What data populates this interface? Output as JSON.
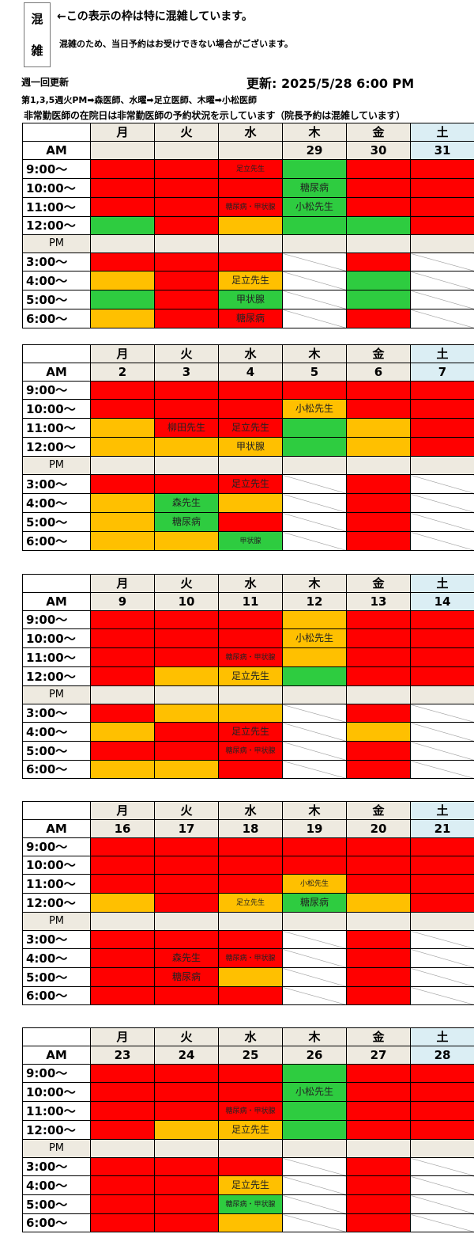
{
  "legend": {
    "box_chars": [
      "混",
      "雑"
    ],
    "line1": "←この表示の枠は特に混雑しています。",
    "line2": "混雑のため、当日予約はお受けできない場合がございます。"
  },
  "update": {
    "weekly": "週一回更新",
    "updated": "更新: 2025/5/28 6:00 PM"
  },
  "notes": {
    "note1": "第1,3,5週火PM➡森医師、水曜➡足立医師、木曜➡小松医師",
    "note2": "非常勤医師の在院日は非常勤医師の予約状況を示しています（院長予約は混雑しています）"
  },
  "weekday_labels": [
    "月",
    "火",
    "水",
    "木",
    "金",
    "土"
  ],
  "am_label": "AM",
  "pm_label": "PM",
  "am_times": [
    "9:00～",
    "10:00～",
    "11:00～",
    "12:00～"
  ],
  "pm_times": [
    "3:00～",
    "4:00～",
    "5:00～",
    "6:00～"
  ],
  "colors": {
    "red": "#ff0000",
    "orange": "#ffc000",
    "green": "#2ecc40",
    "gray": "#eeeae0",
    "saturday": "#dbeef4"
  },
  "weeks": [
    {
      "dates": [
        "",
        "",
        "",
        "29",
        "30",
        "31"
      ],
      "am": [
        [
          [
            "red",
            ""
          ],
          [
            "red",
            ""
          ],
          [
            "red",
            "足立先生",
            "small"
          ],
          [
            "green",
            ""
          ],
          [
            "red",
            ""
          ],
          [
            "red",
            ""
          ]
        ],
        [
          [
            "red",
            ""
          ],
          [
            "red",
            ""
          ],
          [
            "red",
            ""
          ],
          [
            "green",
            "糖尿病",
            "mid"
          ],
          [
            "red",
            ""
          ],
          [
            "red",
            ""
          ]
        ],
        [
          [
            "red",
            ""
          ],
          [
            "red",
            ""
          ],
          [
            "red",
            "糖尿病・甲状腺",
            "small"
          ],
          [
            "green",
            "小松先生",
            "mid"
          ],
          [
            "red",
            ""
          ],
          [
            "red",
            ""
          ]
        ],
        [
          [
            "green",
            ""
          ],
          [
            "red",
            ""
          ],
          [
            "orange",
            ""
          ],
          [
            "green",
            ""
          ],
          [
            "green",
            ""
          ],
          [
            "red",
            ""
          ]
        ]
      ],
      "pm": [
        [
          [
            "red",
            ""
          ],
          [
            "red",
            ""
          ],
          [
            "red",
            ""
          ],
          [
            "closed",
            ""
          ],
          [
            "red",
            ""
          ],
          [
            "closed",
            ""
          ]
        ],
        [
          [
            "orange",
            ""
          ],
          [
            "red",
            ""
          ],
          [
            "orange",
            "足立先生",
            "mid"
          ],
          [
            "closed",
            ""
          ],
          [
            "green",
            ""
          ],
          [
            "closed",
            ""
          ]
        ],
        [
          [
            "green",
            ""
          ],
          [
            "red",
            ""
          ],
          [
            "green",
            "甲状腺",
            "mid"
          ],
          [
            "closed",
            ""
          ],
          [
            "green",
            ""
          ],
          [
            "closed",
            ""
          ]
        ],
        [
          [
            "orange",
            ""
          ],
          [
            "red",
            ""
          ],
          [
            "red",
            "糖尿病",
            "mid"
          ],
          [
            "closed",
            ""
          ],
          [
            "red",
            ""
          ],
          [
            "closed",
            ""
          ]
        ]
      ]
    },
    {
      "dates": [
        "2",
        "3",
        "4",
        "5",
        "6",
        "7"
      ],
      "am": [
        [
          [
            "red",
            ""
          ],
          [
            "red",
            ""
          ],
          [
            "red",
            ""
          ],
          [
            "red",
            ""
          ],
          [
            "red",
            ""
          ],
          [
            "red",
            ""
          ]
        ],
        [
          [
            "red",
            ""
          ],
          [
            "red",
            ""
          ],
          [
            "red",
            ""
          ],
          [
            "orange",
            "小松先生",
            "mid"
          ],
          [
            "red",
            ""
          ],
          [
            "red",
            ""
          ]
        ],
        [
          [
            "orange",
            ""
          ],
          [
            "red",
            "柳田先生",
            "mid"
          ],
          [
            "red",
            "足立先生",
            "mid"
          ],
          [
            "green",
            ""
          ],
          [
            "orange",
            ""
          ],
          [
            "red",
            ""
          ]
        ],
        [
          [
            "orange",
            ""
          ],
          [
            "orange",
            ""
          ],
          [
            "orange",
            "甲状腺",
            "mid"
          ],
          [
            "green",
            ""
          ],
          [
            "orange",
            ""
          ],
          [
            "red",
            ""
          ]
        ]
      ],
      "pm": [
        [
          [
            "red",
            ""
          ],
          [
            "red",
            ""
          ],
          [
            "red",
            "足立先生",
            "mid"
          ],
          [
            "closed",
            ""
          ],
          [
            "red",
            ""
          ],
          [
            "closed",
            ""
          ]
        ],
        [
          [
            "orange",
            ""
          ],
          [
            "green",
            "森先生",
            "mid"
          ],
          [
            "orange",
            ""
          ],
          [
            "closed",
            ""
          ],
          [
            "red",
            ""
          ],
          [
            "closed",
            ""
          ]
        ],
        [
          [
            "orange",
            ""
          ],
          [
            "green",
            "糖尿病",
            "mid"
          ],
          [
            "red",
            ""
          ],
          [
            "closed",
            ""
          ],
          [
            "red",
            ""
          ],
          [
            "closed",
            ""
          ]
        ],
        [
          [
            "orange",
            ""
          ],
          [
            "orange",
            ""
          ],
          [
            "green",
            "甲状腺",
            "small"
          ],
          [
            "closed",
            ""
          ],
          [
            "red",
            ""
          ],
          [
            "closed",
            ""
          ]
        ]
      ]
    },
    {
      "dates": [
        "9",
        "10",
        "11",
        "12",
        "13",
        "14"
      ],
      "am": [
        [
          [
            "red",
            ""
          ],
          [
            "red",
            ""
          ],
          [
            "red",
            ""
          ],
          [
            "orange",
            ""
          ],
          [
            "red",
            ""
          ],
          [
            "red",
            ""
          ]
        ],
        [
          [
            "red",
            ""
          ],
          [
            "red",
            ""
          ],
          [
            "red",
            ""
          ],
          [
            "orange",
            "小松先生",
            "mid"
          ],
          [
            "red",
            ""
          ],
          [
            "red",
            ""
          ]
        ],
        [
          [
            "red",
            ""
          ],
          [
            "red",
            ""
          ],
          [
            "red",
            "糖尿病・甲状腺",
            "small"
          ],
          [
            "orange",
            ""
          ],
          [
            "red",
            ""
          ],
          [
            "red",
            ""
          ]
        ],
        [
          [
            "red",
            ""
          ],
          [
            "orange",
            ""
          ],
          [
            "orange",
            "足立先生",
            "mid"
          ],
          [
            "green",
            ""
          ],
          [
            "red",
            ""
          ],
          [
            "red",
            ""
          ]
        ]
      ],
      "pm": [
        [
          [
            "red",
            ""
          ],
          [
            "orange",
            ""
          ],
          [
            "orange",
            ""
          ],
          [
            "closed",
            ""
          ],
          [
            "red",
            ""
          ],
          [
            "closed",
            ""
          ]
        ],
        [
          [
            "orange",
            ""
          ],
          [
            "red",
            ""
          ],
          [
            "red",
            "足立先生",
            "mid"
          ],
          [
            "closed",
            ""
          ],
          [
            "orange",
            ""
          ],
          [
            "closed",
            ""
          ]
        ],
        [
          [
            "red",
            ""
          ],
          [
            "red",
            ""
          ],
          [
            "red",
            "糖尿病・甲状腺",
            "small"
          ],
          [
            "closed",
            ""
          ],
          [
            "red",
            ""
          ],
          [
            "closed",
            ""
          ]
        ],
        [
          [
            "orange",
            ""
          ],
          [
            "orange",
            ""
          ],
          [
            "red",
            ""
          ],
          [
            "closed",
            ""
          ],
          [
            "red",
            ""
          ],
          [
            "closed",
            ""
          ]
        ]
      ]
    },
    {
      "dates": [
        "16",
        "17",
        "18",
        "19",
        "20",
        "21"
      ],
      "am": [
        [
          [
            "red",
            ""
          ],
          [
            "red",
            ""
          ],
          [
            "red",
            ""
          ],
          [
            "red",
            ""
          ],
          [
            "red",
            ""
          ],
          [
            "red",
            ""
          ]
        ],
        [
          [
            "red",
            ""
          ],
          [
            "red",
            ""
          ],
          [
            "red",
            ""
          ],
          [
            "red",
            ""
          ],
          [
            "red",
            ""
          ],
          [
            "red",
            ""
          ]
        ],
        [
          [
            "red",
            ""
          ],
          [
            "red",
            ""
          ],
          [
            "red",
            ""
          ],
          [
            "orange",
            "小松先生",
            "small"
          ],
          [
            "red",
            ""
          ],
          [
            "red",
            ""
          ]
        ],
        [
          [
            "orange",
            ""
          ],
          [
            "red",
            ""
          ],
          [
            "orange",
            "足立先生",
            "small"
          ],
          [
            "green",
            "糖尿病",
            "mid"
          ],
          [
            "orange",
            ""
          ],
          [
            "red",
            ""
          ]
        ]
      ],
      "pm": [
        [
          [
            "red",
            ""
          ],
          [
            "red",
            ""
          ],
          [
            "red",
            ""
          ],
          [
            "closed",
            ""
          ],
          [
            "red",
            ""
          ],
          [
            "closed",
            ""
          ]
        ],
        [
          [
            "red",
            ""
          ],
          [
            "red",
            "森先生",
            "mid"
          ],
          [
            "red",
            "糖尿病・甲状腺",
            "small"
          ],
          [
            "closed",
            ""
          ],
          [
            "red",
            ""
          ],
          [
            "closed",
            ""
          ]
        ],
        [
          [
            "red",
            ""
          ],
          [
            "red",
            "糖尿病",
            "mid"
          ],
          [
            "orange",
            ""
          ],
          [
            "closed",
            ""
          ],
          [
            "red",
            ""
          ],
          [
            "closed",
            ""
          ]
        ],
        [
          [
            "red",
            ""
          ],
          [
            "red",
            ""
          ],
          [
            "red",
            ""
          ],
          [
            "closed",
            ""
          ],
          [
            "red",
            ""
          ],
          [
            "closed",
            ""
          ]
        ]
      ]
    },
    {
      "dates": [
        "23",
        "24",
        "25",
        "26",
        "27",
        "28"
      ],
      "am": [
        [
          [
            "red",
            ""
          ],
          [
            "red",
            ""
          ],
          [
            "red",
            ""
          ],
          [
            "green",
            ""
          ],
          [
            "red",
            ""
          ],
          [
            "red",
            ""
          ]
        ],
        [
          [
            "red",
            ""
          ],
          [
            "red",
            ""
          ],
          [
            "red",
            ""
          ],
          [
            "green",
            "小松先生",
            "mid"
          ],
          [
            "red",
            ""
          ],
          [
            "red",
            ""
          ]
        ],
        [
          [
            "red",
            ""
          ],
          [
            "red",
            ""
          ],
          [
            "red",
            "糖尿病・甲状腺",
            "small"
          ],
          [
            "green",
            ""
          ],
          [
            "red",
            ""
          ],
          [
            "red",
            ""
          ]
        ],
        [
          [
            "red",
            ""
          ],
          [
            "orange",
            ""
          ],
          [
            "orange",
            "足立先生",
            "mid"
          ],
          [
            "green",
            ""
          ],
          [
            "red",
            ""
          ],
          [
            "red",
            ""
          ]
        ]
      ],
      "pm": [
        [
          [
            "red",
            ""
          ],
          [
            "red",
            ""
          ],
          [
            "red",
            ""
          ],
          [
            "closed",
            ""
          ],
          [
            "red",
            ""
          ],
          [
            "closed",
            ""
          ]
        ],
        [
          [
            "red",
            ""
          ],
          [
            "red",
            ""
          ],
          [
            "orange",
            "足立先生",
            "mid"
          ],
          [
            "closed",
            ""
          ],
          [
            "red",
            ""
          ],
          [
            "closed",
            ""
          ]
        ],
        [
          [
            "red",
            ""
          ],
          [
            "red",
            ""
          ],
          [
            "green",
            "糖尿病・甲状腺",
            "small"
          ],
          [
            "closed",
            ""
          ],
          [
            "red",
            ""
          ],
          [
            "closed",
            ""
          ]
        ],
        [
          [
            "red",
            ""
          ],
          [
            "red",
            ""
          ],
          [
            "orange",
            ""
          ],
          [
            "closed",
            ""
          ],
          [
            "red",
            ""
          ],
          [
            "closed",
            ""
          ]
        ]
      ]
    }
  ]
}
